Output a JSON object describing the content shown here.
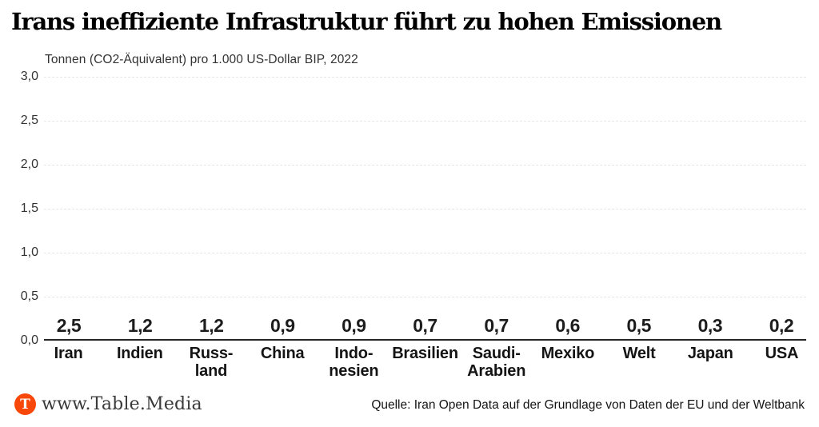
{
  "title": "Irans ineffiziente Infrastruktur führt zu hohen Emissionen",
  "subtitle": "Tonnen (CO2-Äquivalent) pro 1.000 US-Dollar BIP, 2022",
  "colors": {
    "accent": "#f84708",
    "highlight": "#00b9f2",
    "bar_default": "#cccccc"
  },
  "chart_data": {
    "type": "bar",
    "title": "Irans ineffiziente Infrastruktur führt zu hohen Emissionen",
    "unit_label": "Tonnen (CO2-Äquivalent) pro 1.000 US-Dollar BIP, 2022",
    "categories": [
      "Iran",
      "Indien",
      "Russland",
      "China",
      "Indonesien",
      "Brasilien",
      "Saudi-Arabien",
      "Mexiko",
      "Welt",
      "Japan",
      "USA"
    ],
    "category_display": [
      [
        "Iran"
      ],
      [
        "Indien"
      ],
      [
        "Russ-",
        "land"
      ],
      [
        "China"
      ],
      [
        "Indo-",
        "nesien"
      ],
      [
        "Brasilien"
      ],
      [
        "Saudi-",
        "Arabien"
      ],
      [
        "Mexiko"
      ],
      [
        "Welt"
      ],
      [
        "Japan"
      ],
      [
        "USA"
      ]
    ],
    "values": [
      2.5,
      1.2,
      1.2,
      0.9,
      0.9,
      0.7,
      0.7,
      0.6,
      0.5,
      0.3,
      0.2
    ],
    "value_labels": [
      "2,5",
      "1,2",
      "1,2",
      "0,9",
      "0,9",
      "0,7",
      "0,7",
      "0,6",
      "0,5",
      "0,3",
      "0,2"
    ],
    "bar_color_keys": [
      "accent",
      "default",
      "default",
      "default",
      "default",
      "default",
      "default",
      "default",
      "highlight",
      "default",
      "default"
    ],
    "y_ticks": [
      "3,0",
      "2,5",
      "2,0",
      "1,5",
      "1,0",
      "0,5",
      "0,0"
    ],
    "ylim": [
      0,
      3
    ],
    "grid": "horizontal-dashed",
    "legend": "none",
    "source": "Quelle: Iran Open Data auf der Grundlage von Daten der EU und der Weltbank"
  },
  "footer": {
    "logo_letter": "T",
    "site": "www.Table.Media",
    "source": "Quelle: Iran Open Data auf der Grundlage von Daten der EU und der Weltbank"
  }
}
